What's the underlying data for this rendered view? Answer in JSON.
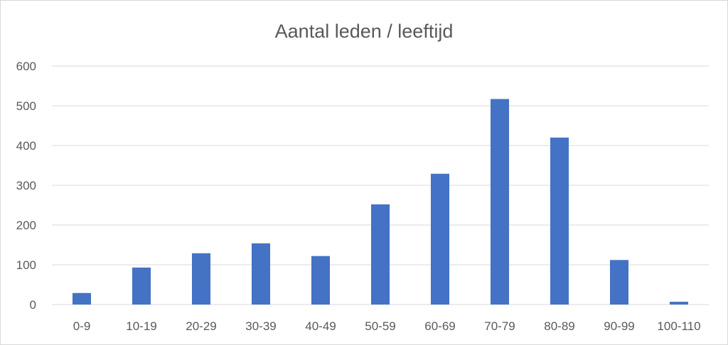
{
  "chart_data": {
    "type": "bar",
    "title": "Aantal leden / leeftijd",
    "xlabel": "",
    "ylabel": "",
    "categories": [
      "0-9",
      "10-19",
      "20-29",
      "30-39",
      "40-49",
      "50-59",
      "60-69",
      "70-79",
      "80-89",
      "90-99",
      "100-110"
    ],
    "values": [
      29,
      93,
      129,
      154,
      122,
      252,
      329,
      517,
      420,
      112,
      7
    ],
    "ylim": [
      0,
      600
    ],
    "yticks": [
      0,
      100,
      200,
      300,
      400,
      500,
      600
    ],
    "grid": true,
    "legend": "none",
    "bar_color": "#4472c4"
  }
}
